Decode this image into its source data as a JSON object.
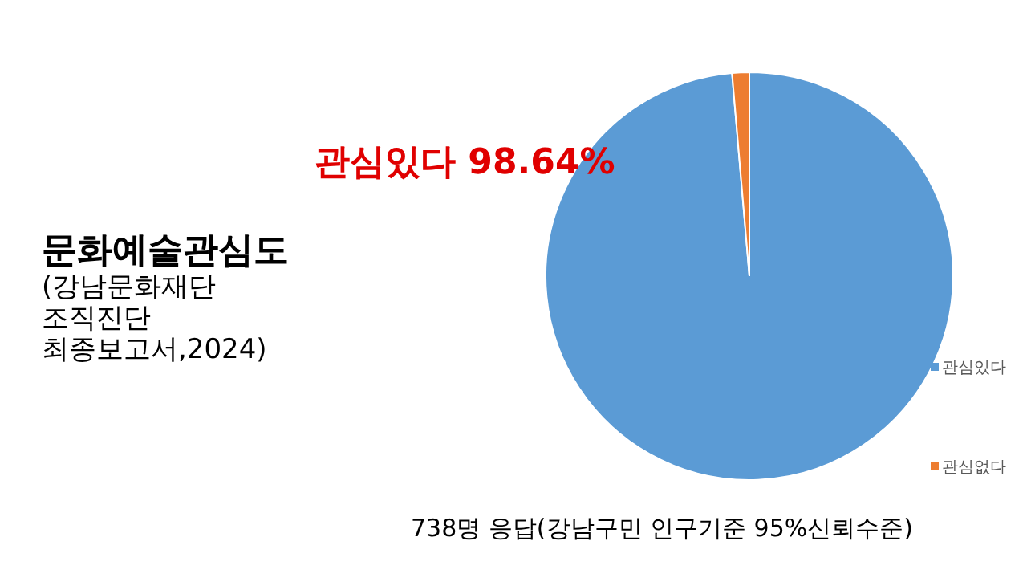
{
  "chart_data": {
    "type": "pie",
    "title": "문화예술관심도",
    "subtitle": "(강남문화재단\n조직진단\n최종보고서,2024)",
    "categories": [
      "관심있다",
      "관심없다"
    ],
    "values": [
      98.64,
      1.36
    ],
    "colors": [
      "#5b9bd5",
      "#ed7d31"
    ],
    "value_labels": [
      "관심있다 98.64%",
      null
    ],
    "legend": "right",
    "annotations": [
      "738명 응답(강남구민 인구기준 95%신뢰수준)"
    ]
  }
}
